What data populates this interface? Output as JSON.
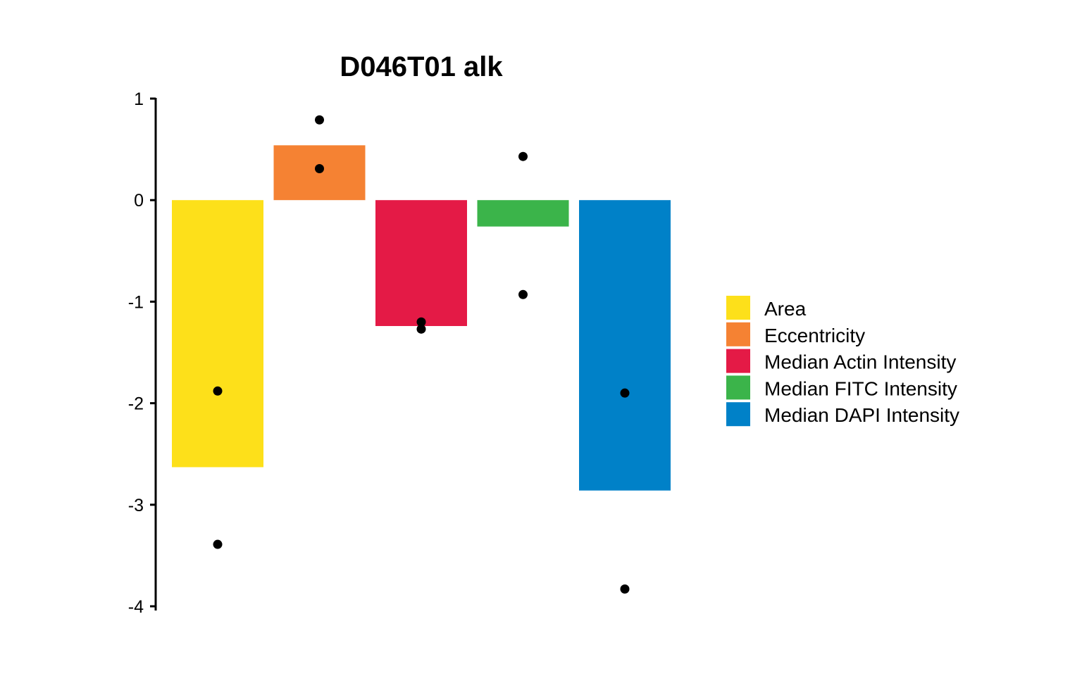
{
  "chart_data": {
    "type": "bar",
    "title": "D046T01 alk",
    "xlabel": "",
    "ylabel": "",
    "ylim": [
      -4,
      1
    ],
    "yticks": [
      1,
      0,
      -1,
      -2,
      -3,
      -4
    ],
    "ytick_labels": [
      "1",
      "0",
      "-1",
      "-2",
      "-3",
      "-4"
    ],
    "grid": false,
    "legend_position": "right",
    "categories": [
      "Area",
      "Eccentricity",
      "Median Actin Intensity",
      "Median FITC Intensity",
      "Median DAPI Intensity"
    ],
    "values": [
      -2.63,
      0.54,
      -1.24,
      -0.26,
      -2.86
    ],
    "colors": [
      "#FDE01A",
      "#F58233",
      "#E41A46",
      "#3BB44A",
      "#0081C8"
    ],
    "points": [
      [
        -1.88,
        -3.39
      ],
      [
        0.79,
        0.31
      ],
      [
        -1.2,
        -1.27
      ],
      [
        0.43,
        -0.93
      ],
      [
        -1.9,
        -3.83
      ]
    ],
    "point_color": "#000000",
    "legend": [
      "Area",
      "Eccentricity",
      "Median Actin Intensity",
      "Median FITC Intensity",
      "Median DAPI Intensity"
    ]
  }
}
